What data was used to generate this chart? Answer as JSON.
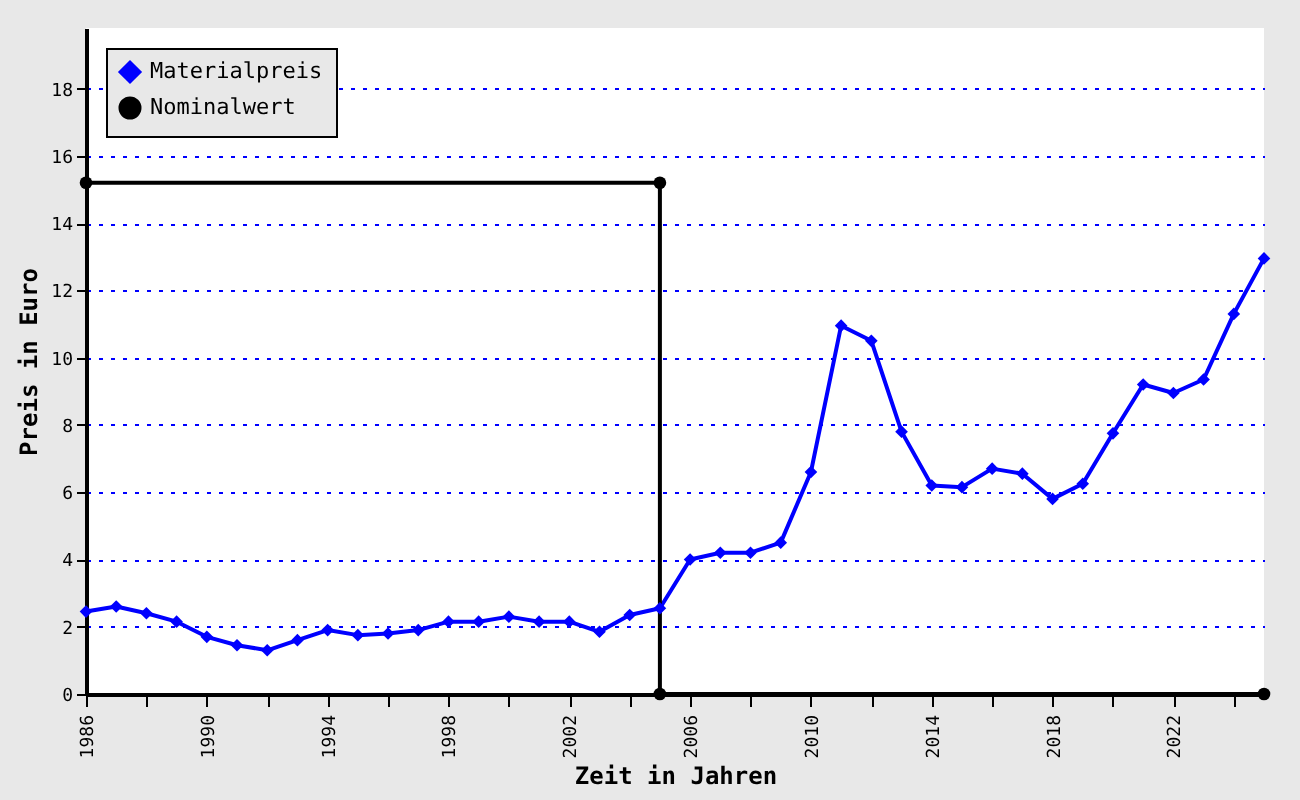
{
  "chart_data": {
    "type": "line",
    "xlabel": "Zeit in Jahren",
    "ylabel": "Preis in Euro",
    "xlim": [
      1986,
      2025
    ],
    "ylim": [
      0,
      19.8
    ],
    "xticks": [
      1986,
      {
        "value": 1988,
        "label": null
      },
      1990,
      {
        "value": 1992,
        "label": null
      },
      1994,
      {
        "value": 1996,
        "label": null
      },
      1998,
      {
        "value": 2000,
        "label": null
      },
      2002,
      {
        "value": 2004,
        "label": null
      },
      2006,
      {
        "value": 2008,
        "label": null
      },
      2010,
      {
        "value": 2012,
        "label": null
      },
      2014,
      {
        "value": 2016,
        "label": null
      },
      2018,
      {
        "value": 2020,
        "label": null
      },
      2022,
      {
        "value": 2024,
        "label": null
      }
    ],
    "yticks": [
      0,
      2,
      4,
      6,
      8,
      10,
      12,
      14,
      16,
      18
    ],
    "grid": "y",
    "legend": "top left",
    "series": [
      {
        "name": "Materialpreis",
        "color": "#0000ff",
        "marker": "diamond",
        "x": [
          1986,
          1987,
          1988,
          1989,
          1990,
          1991,
          1992,
          1993,
          1994,
          1995,
          1996,
          1997,
          1998,
          1999,
          2000,
          2001,
          2002,
          2003,
          2004,
          2005,
          2006,
          2007,
          2008,
          2009,
          2010,
          2011,
          2012,
          2013,
          2014,
          2015,
          2016,
          2017,
          2018,
          2019,
          2020,
          2021,
          2022,
          2023,
          2024,
          2025
        ],
        "values": [
          2.45,
          2.6,
          2.4,
          2.15,
          1.7,
          1.45,
          1.3,
          1.6,
          1.9,
          1.75,
          1.8,
          1.9,
          2.15,
          2.15,
          2.3,
          2.15,
          2.15,
          1.85,
          2.35,
          2.55,
          4.0,
          4.2,
          4.2,
          4.5,
          6.6,
          10.95,
          10.5,
          7.8,
          6.2,
          6.15,
          6.7,
          6.55,
          5.8,
          6.25,
          7.75,
          9.2,
          8.95,
          9.35,
          11.3,
          12.95
        ]
      },
      {
        "name": "Nominalwert",
        "color": "#000000",
        "marker": "circle",
        "x": [
          1986,
          2005,
          2005,
          2025
        ],
        "values": [
          15.2,
          15.2,
          0,
          0
        ]
      }
    ]
  }
}
